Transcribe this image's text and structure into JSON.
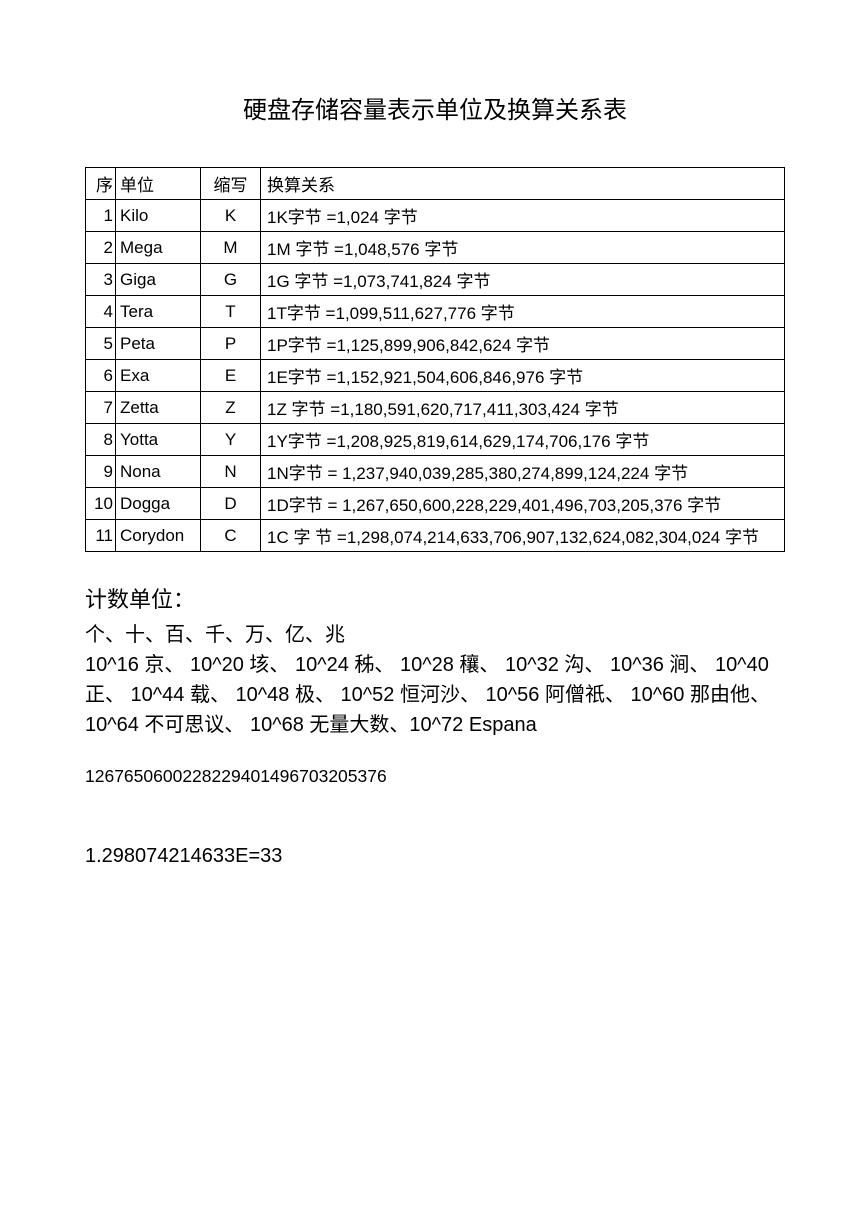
{
  "title": "硬盘存储容量表示单位及换算关系表",
  "table": {
    "headers": {
      "seq": "序",
      "unit": "单位",
      "abbr": "缩写",
      "relation": "换算关系"
    },
    "rows": [
      {
        "seq": "1",
        "unit": "Kilo",
        "abbr": "K",
        "relation": "1K字节 =1,024 字节"
      },
      {
        "seq": "2",
        "unit": "Mega",
        "abbr": "M",
        "relation": "1M 字节 =1,048,576  字节"
      },
      {
        "seq": "3",
        "unit": "Giga",
        "abbr": "G",
        "relation": "1G 字节 =1,073,741,824  字节"
      },
      {
        "seq": "4",
        "unit": "Tera",
        "abbr": "T",
        "relation": "1T字节 =1,099,511,627,776  字节"
      },
      {
        "seq": "5",
        "unit": "Peta",
        "abbr": "P",
        "relation": "1P字节 =1,125,899,906,842,624   字节"
      },
      {
        "seq": "6",
        "unit": "Exa",
        "abbr": "E",
        "relation": "1E字节 =1,152,921,504,606,846,976     字节"
      },
      {
        "seq": "7",
        "unit": "Zetta",
        "abbr": "Z",
        "relation": "1Z 字节 =1,180,591,620,717,411,303,424      字节"
      },
      {
        "seq": "8",
        "unit": "Yotta",
        "abbr": "Y",
        "relation": "1Y字节 =1,208,925,819,614,629,174,706,176       字节"
      },
      {
        "seq": "9",
        "unit": "Nona",
        "abbr": "N",
        "relation": "1N字节 = 1,237,940,039,285,380,274,899,124,224        字节"
      },
      {
        "seq": "10",
        "unit": "Dogga",
        "abbr": "D",
        "relation": "1D字节 = 1,267,650,600,228,229,401,496,703,205,376         字节"
      },
      {
        "seq": "11",
        "unit": "Corydon",
        "abbr": "C",
        "relation": "1C  字 节 =1,298,074,214,633,706,907,132,624,082,304,024 字节"
      }
    ]
  },
  "counting_heading": "计数单位：",
  "counting_line1": "个、十、百、千、万、亿、兆",
  "counting_line2": "10^16 京、 10^20 垓、 10^24 秭、 10^28 穰、 10^32 沟、 10^36 涧、 10^40 正、 10^44 载、 10^48 极、 10^52 恒河沙、 10^56 阿僧祇、 10^60 那由他、 10^64 不可思议、 10^68 无量大数、10^72 Espana",
  "number1": "1267650600228229401496703205376",
  "number2": "1.298074214633E=33"
}
